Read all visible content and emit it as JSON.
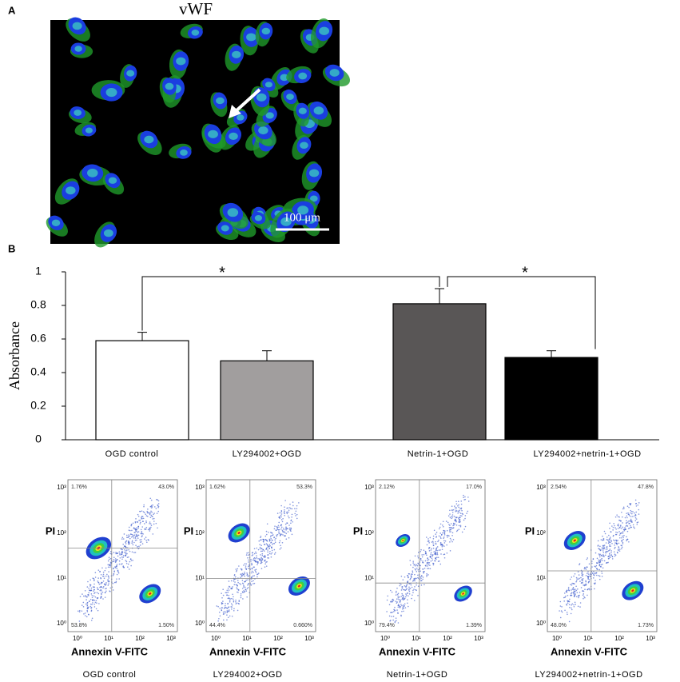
{
  "panel_a": {
    "label": "A",
    "title": "vWF",
    "scale_bar": "100 μm"
  },
  "chart_data": {
    "type": "bar",
    "panel_label": "B",
    "y_label": "Absorbance",
    "categories": [
      "OGD control",
      "LY294002+OGD",
      "Netrin-1+OGD",
      "LY294002+netrin-1+OGD"
    ],
    "values": [
      0.59,
      0.47,
      0.81,
      0.49
    ],
    "errors": [
      0.05,
      0.06,
      0.09,
      0.04
    ],
    "colors": [
      "#ffffff",
      "#a19e9e",
      "#595656",
      "#000000"
    ],
    "ylim": [
      0,
      1
    ],
    "yticks": [
      0,
      0.2,
      0.4,
      0.6,
      0.8,
      1
    ],
    "annotations": [
      "*",
      "*"
    ]
  },
  "flow_cytometry": {
    "x_label": "Annexin V-FITC",
    "y_label": "PI",
    "ticks": [
      "10⁰",
      "10¹",
      "10²",
      "10³"
    ],
    "plots": [
      {
        "caption": "OGD control",
        "quadrants": [
          "1.76%",
          "43.0%",
          "53.8%",
          "1.50%"
        ]
      },
      {
        "caption": "LY294002+OGD",
        "quadrants": [
          "1.62%",
          "53.3%",
          "44.4%",
          "0.660%"
        ]
      },
      {
        "caption": "Netrin-1+OGD",
        "quadrants": [
          "2.12%",
          "17.0%",
          "79.4%",
          "1.39%"
        ]
      },
      {
        "caption": "LY294002+netrin-1+OGD",
        "quadrants": [
          "2.54%",
          "47.8%",
          "48.0%",
          "1.73%"
        ]
      }
    ]
  }
}
